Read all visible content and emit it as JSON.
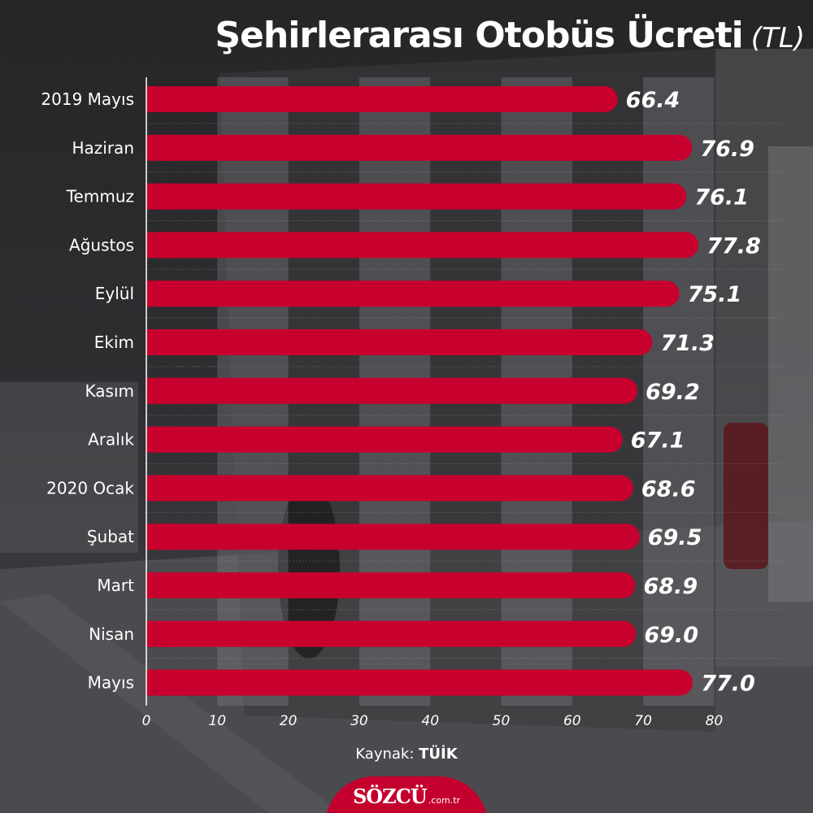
{
  "chart_data": {
    "type": "bar",
    "orientation": "horizontal",
    "title": "Şehirlerarası Otobüs Ücreti",
    "title_unit": "(TL)",
    "categories": [
      "2019 Mayıs",
      "Haziran",
      "Temmuz",
      "Ağustos",
      "Eylül",
      "Ekim",
      "Kasım",
      "Aralık",
      "2020 Ocak",
      "Şubat",
      "Mart",
      "Nisan",
      "Mayıs"
    ],
    "values": [
      66.4,
      76.9,
      76.1,
      77.8,
      75.1,
      71.3,
      69.2,
      67.1,
      68.6,
      69.5,
      68.9,
      69.0,
      77.0
    ],
    "value_labels": [
      "66.4",
      "76.9",
      "76.1",
      "77.8",
      "75.1",
      "71.3",
      "69.2",
      "67.1",
      "68.6",
      "69.5",
      "68.9",
      "69.0",
      "77.0"
    ],
    "xlim": [
      0,
      80
    ],
    "xticks": [
      0,
      10,
      20,
      30,
      40,
      50,
      60,
      70,
      80
    ],
    "xlabel": "",
    "ylabel": "",
    "bar_color": "#c8002e",
    "grid": "alternating vertical bands",
    "legend": "none"
  },
  "source": {
    "prefix": "Kaynak:",
    "name": "TÜİK"
  },
  "logo": {
    "text": "SÖZCÜ",
    "domain": ".com.tr"
  },
  "colors": {
    "accent": "#c8002e",
    "logo_bg": "#c4002e",
    "text": "#ffffff"
  }
}
